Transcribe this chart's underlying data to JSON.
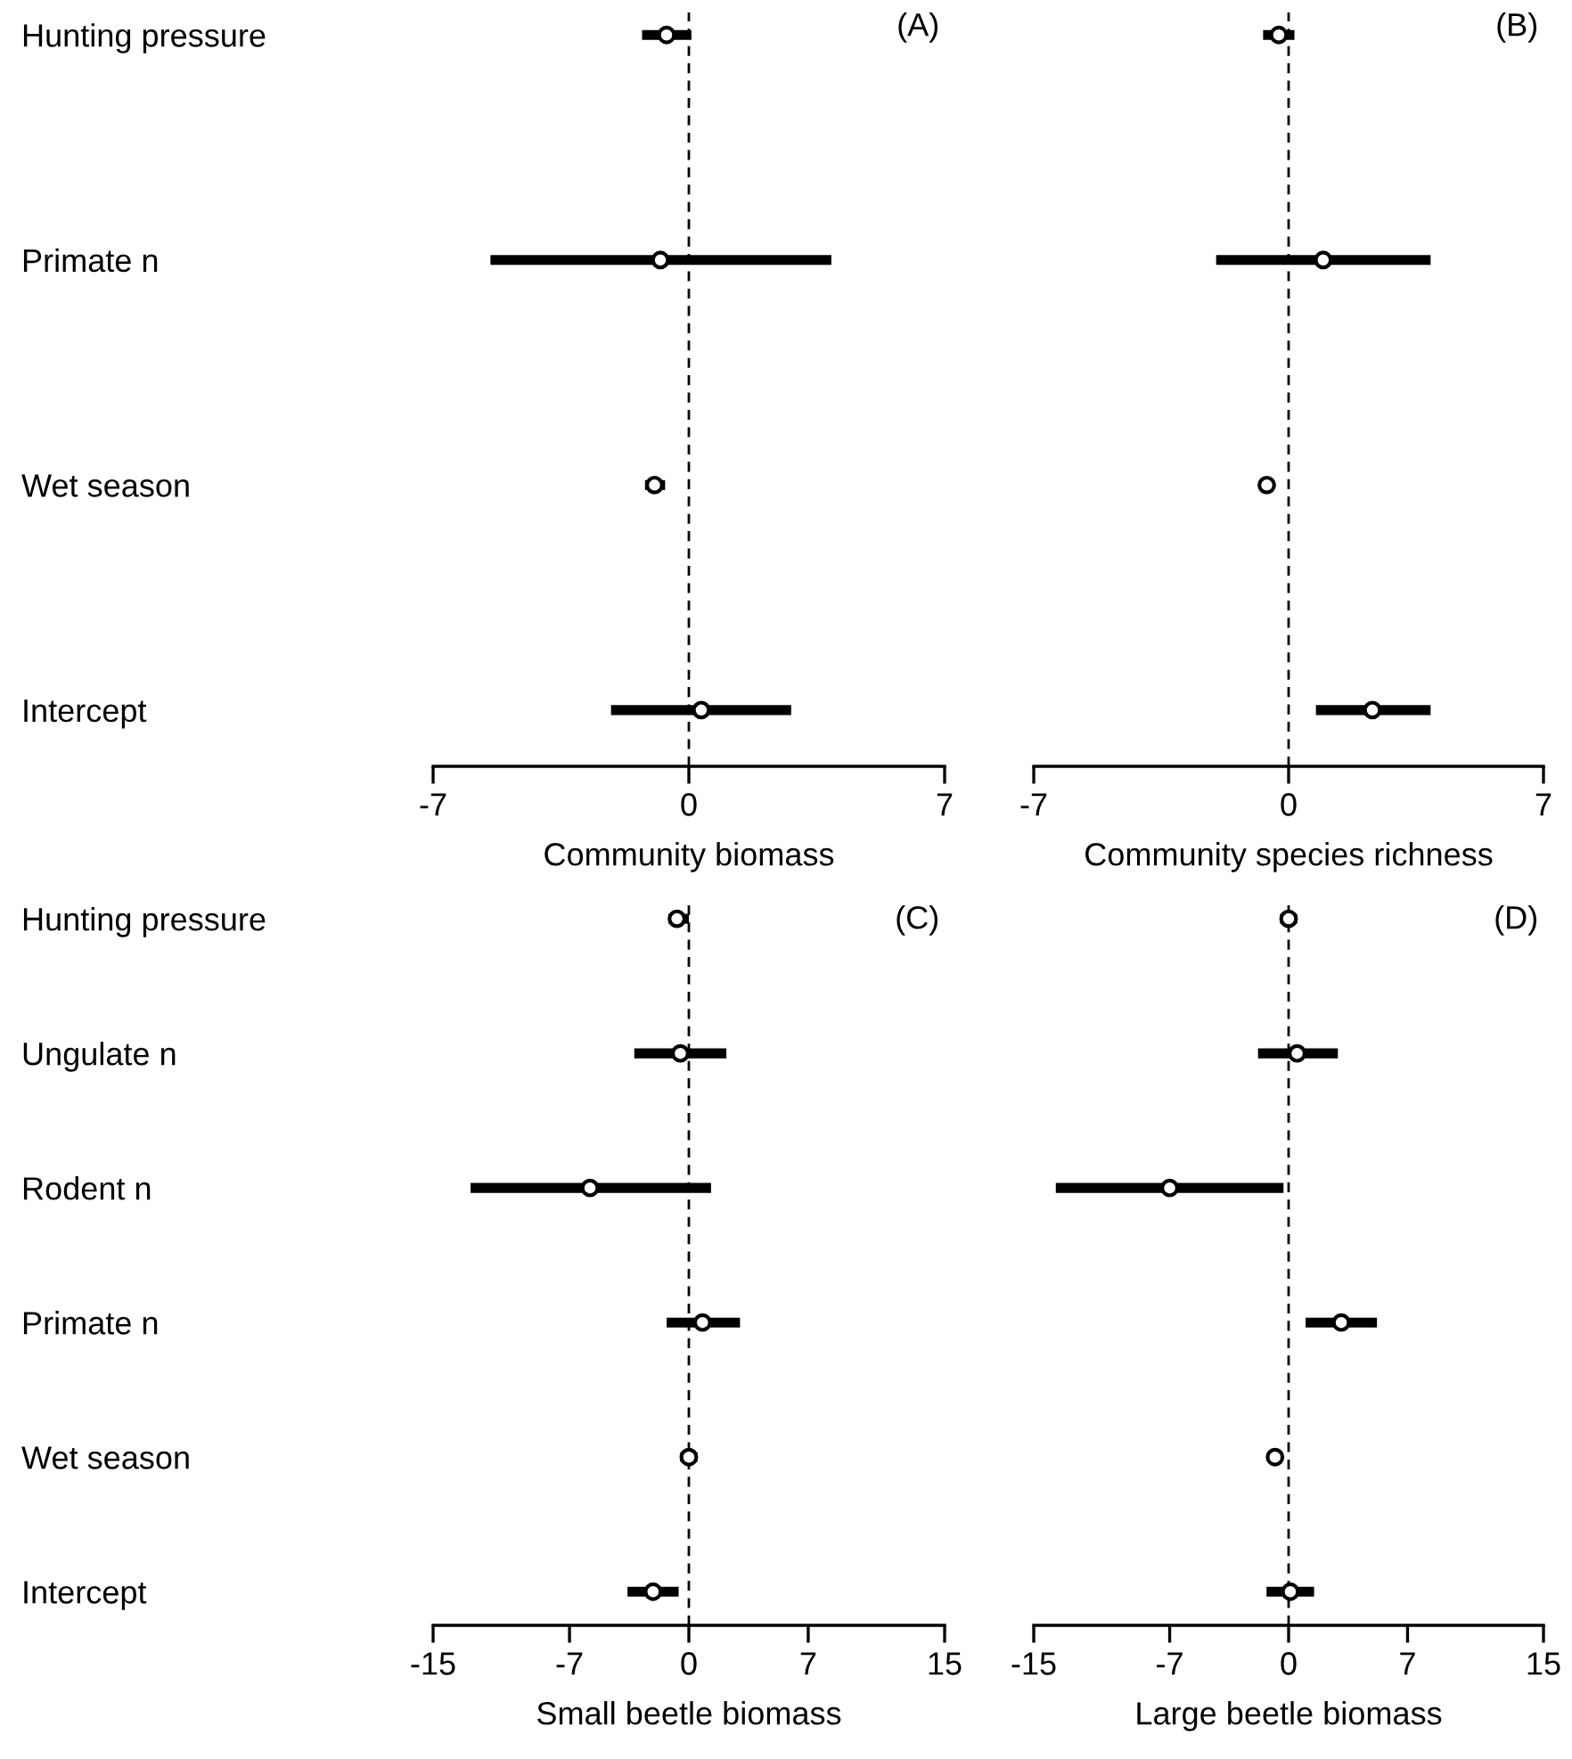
{
  "chart_data": [
    {
      "type": "scatter",
      "orientation": "horizontal",
      "categories": [
        "Hunting pressure",
        "Primate n",
        "Wet season",
        "Intercept"
      ],
      "values": [
        -0.61,
        -0.78,
        -0.94,
        0.34
      ],
      "errors": [
        [
          -1.28,
          0.07
        ],
        [
          -5.43,
          3.9
        ],
        [
          -1.2,
          -0.65
        ],
        [
          -2.13,
          2.8
        ]
      ],
      "color": "#000000",
      "marker": "circle",
      "xlim": [
        -7,
        7
      ],
      "xticks": [
        -7,
        0,
        7
      ],
      "xlabel": "Community biomass",
      "annotations": [
        "(A)"
      ],
      "ref_lines": [
        {
          "axis": "x",
          "value": 0,
          "line_style": "dashed",
          "color": "#000000"
        }
      ]
    },
    {
      "type": "scatter",
      "orientation": "horizontal",
      "categories": [
        null,
        null,
        null,
        null
      ],
      "values": [
        -0.27,
        0.95,
        -0.6,
        2.3
      ],
      "errors": [
        [
          -0.7,
          0.16
        ],
        [
          -1.99,
          3.9
        ],
        null,
        [
          0.75,
          3.9
        ]
      ],
      "color": "#000000",
      "marker": "circle",
      "xlim": [
        -7,
        7
      ],
      "xticks": [
        -7,
        0,
        7
      ],
      "xlabel": "Community species richness",
      "tick_labels": "x",
      "annotations": [
        "(B)"
      ],
      "ref_lines": [
        {
          "axis": "x",
          "value": 0,
          "line_style": "dashed",
          "color": "#000000"
        }
      ]
    },
    {
      "type": "scatter",
      "orientation": "horizontal",
      "categories": [
        "Hunting pressure",
        "Ungulate n",
        "Rodent n",
        "Primate n",
        "Wet season",
        "Intercept"
      ],
      "values": [
        -0.7,
        -0.5,
        -5.8,
        0.8,
        0,
        -2.1
      ],
      "errors": [
        [
          -1.2,
          0
        ],
        [
          -3.2,
          2.2
        ],
        [
          -12.8,
          1.3
        ],
        [
          -1.3,
          3
        ],
        [
          -0.5,
          0.5
        ],
        [
          -3.6,
          -0.6
        ]
      ],
      "color": "#000000",
      "marker": "circle",
      "xlim": [
        -15,
        15
      ],
      "xticks": [
        -15,
        -7,
        0,
        7,
        15
      ],
      "xlabel": "Small beetle biomass",
      "annotations": [
        "(C)"
      ],
      "ref_lines": [
        {
          "axis": "x",
          "value": 0,
          "line_style": "dashed",
          "color": "#000000"
        }
      ]
    },
    {
      "type": "scatter",
      "orientation": "horizontal",
      "categories": [
        null,
        null,
        null,
        null,
        null,
        null
      ],
      "values": [
        0,
        0.5,
        -7,
        3.1,
        -0.8,
        0.1
      ],
      "errors": [
        [
          -0.5,
          0.5
        ],
        [
          -1.8,
          2.9
        ],
        [
          -13.7,
          -0.3
        ],
        [
          1,
          5.2
        ],
        null,
        [
          -1.3,
          1.5
        ]
      ],
      "color": "#000000",
      "marker": "circle",
      "xlim": [
        -15,
        15
      ],
      "xticks": [
        -15,
        -7,
        0,
        7,
        15
      ],
      "xlabel": "Large beetle biomass",
      "tick_labels": "x",
      "annotations": [
        "(D)"
      ],
      "ref_lines": [
        {
          "axis": "x",
          "value": 0,
          "line_style": "dashed",
          "color": "#000000"
        }
      ]
    }
  ]
}
